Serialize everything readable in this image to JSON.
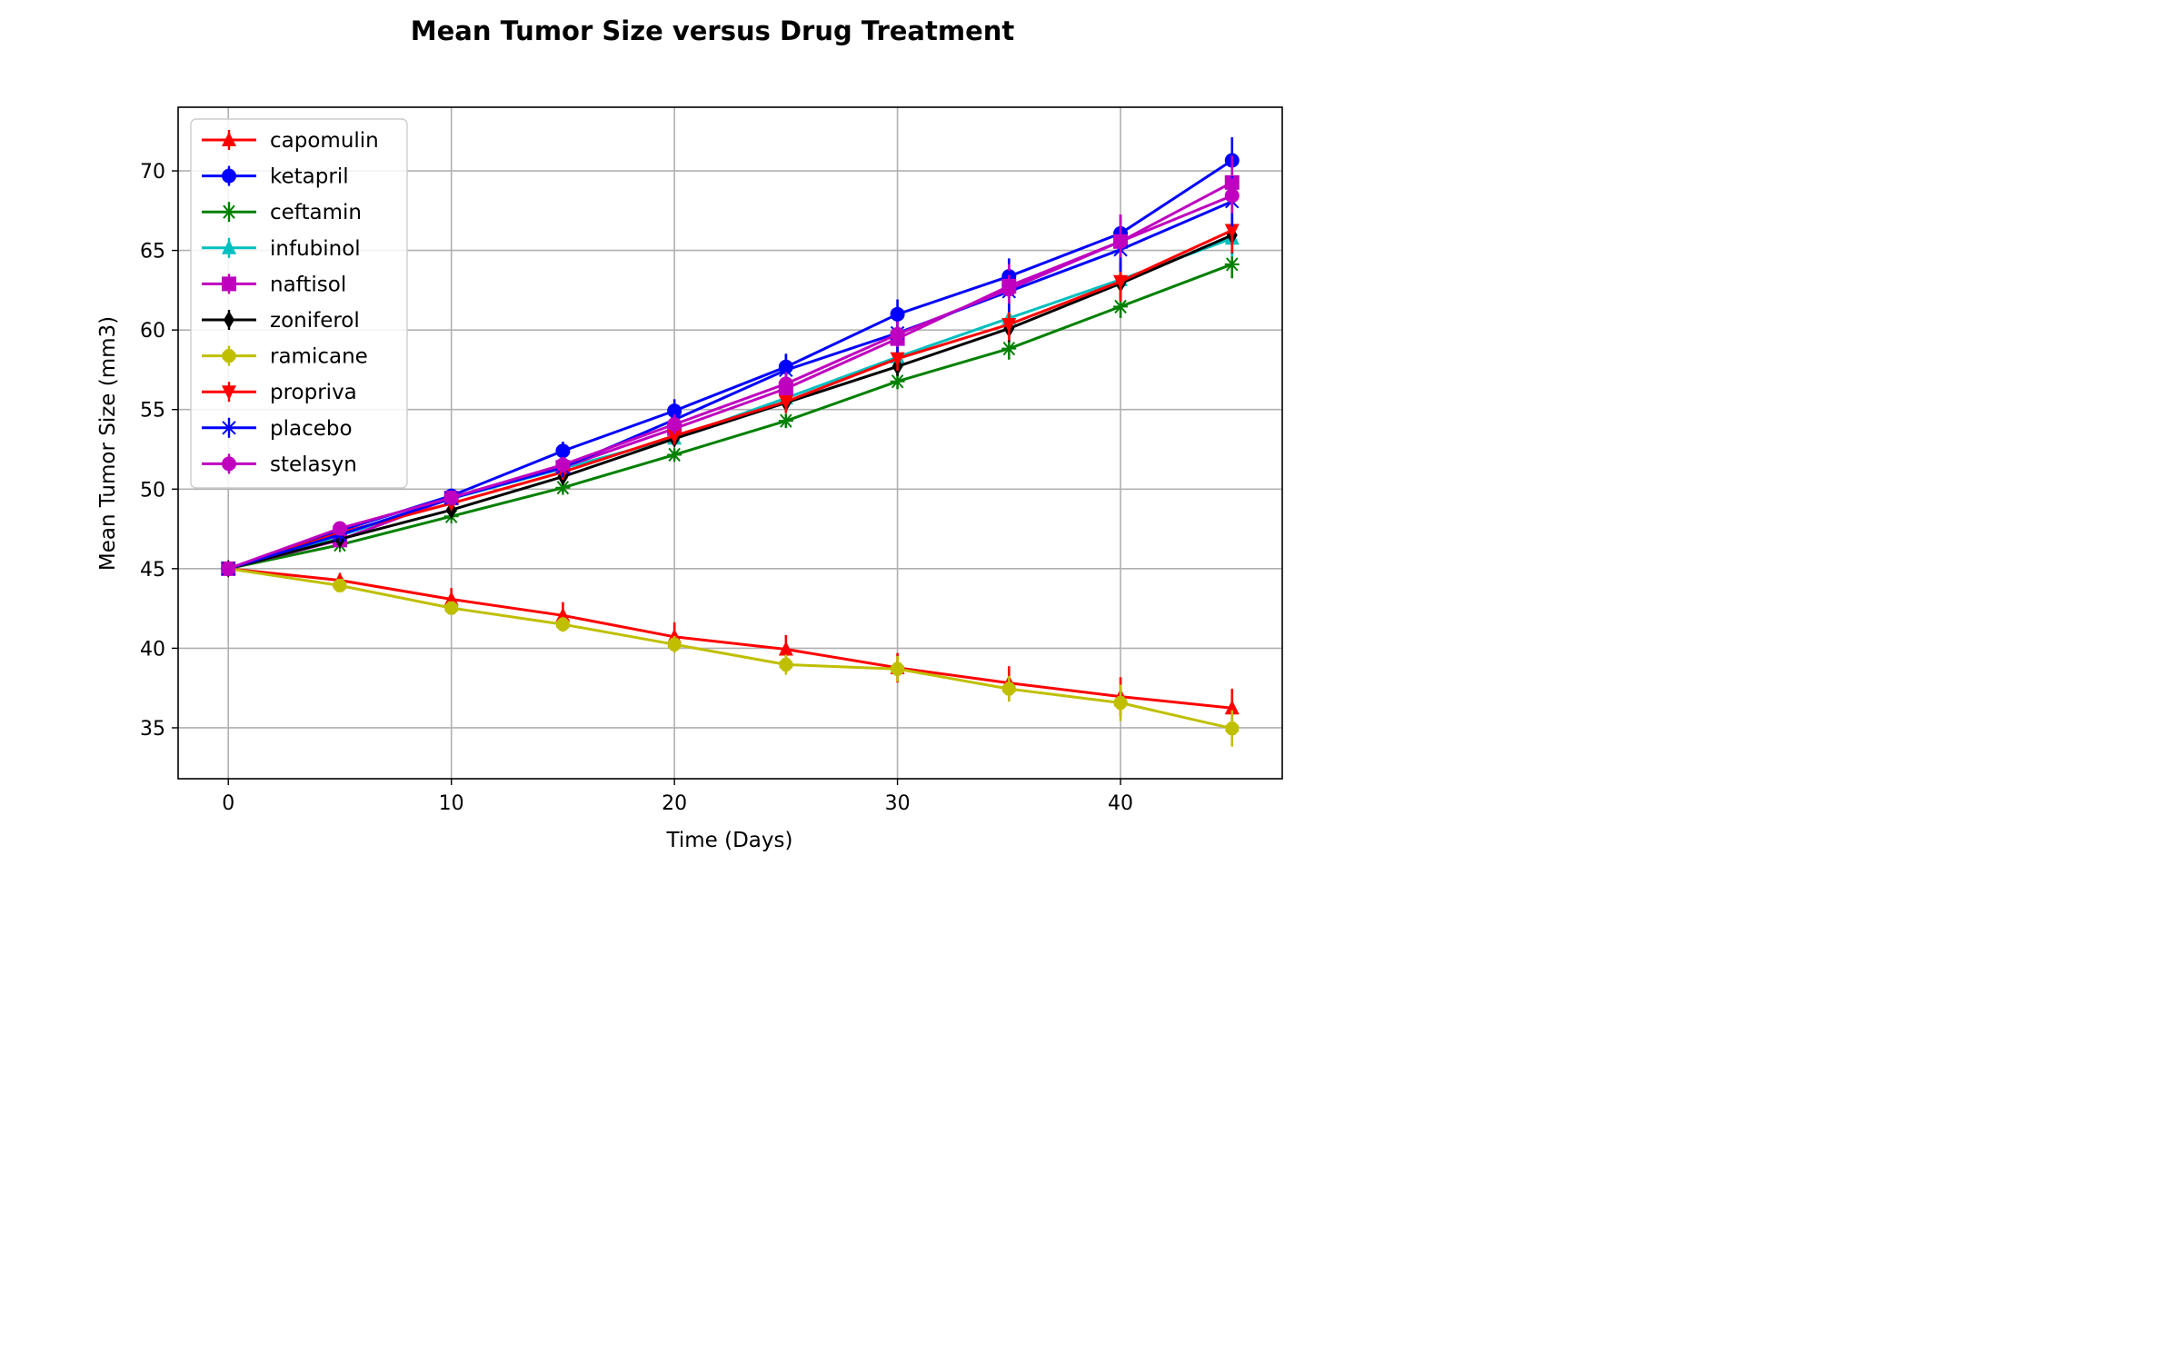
{
  "chart_data": {
    "type": "line",
    "title": "Mean Tumor Size versus Drug Treatment",
    "xlabel": "Time (Days)",
    "ylabel": "Mean Tumor Size (mm3)",
    "xlim": [
      -2.25,
      47.25
    ],
    "ylim": [
      31.8,
      74.0
    ],
    "xticks": [
      "0",
      "10",
      "20",
      "30",
      "40"
    ],
    "yticks": [
      "35",
      "40",
      "45",
      "50",
      "55",
      "60",
      "65",
      "70"
    ],
    "grid": true,
    "legend_position": "upper-left",
    "x": [
      0,
      5,
      10,
      15,
      20,
      25,
      30,
      35,
      40,
      45
    ],
    "series": [
      {
        "name": "capomulin",
        "color": "#ff0000",
        "marker": "triangle-up",
        "values": [
          45.0,
          44.27,
          43.08,
          42.06,
          40.72,
          39.94,
          38.77,
          37.82,
          36.96,
          36.24
        ],
        "errors": [
          0.0,
          0.45,
          0.7,
          0.84,
          0.91,
          0.89,
          0.93,
          1.05,
          1.22,
          1.22
        ]
      },
      {
        "name": "ketapril",
        "color": "#0000ff",
        "marker": "circle",
        "values": [
          45.0,
          47.39,
          49.58,
          52.4,
          54.92,
          57.68,
          60.99,
          63.37,
          66.07,
          70.66
        ],
        "errors": [
          0.0,
          0.26,
          0.36,
          0.58,
          0.73,
          0.76,
          0.93,
          1.13,
          1.16,
          1.45
        ]
      },
      {
        "name": "ceftamin",
        "color": "#008000",
        "marker": "star",
        "values": [
          45.0,
          46.5,
          48.29,
          50.09,
          52.16,
          54.29,
          56.77,
          58.83,
          61.47,
          64.13
        ],
        "errors": [
          0.0,
          0.16,
          0.24,
          0.33,
          0.36,
          0.44,
          0.49,
          0.69,
          0.71,
          0.88
        ]
      },
      {
        "name": "infubinol",
        "color": "#00bfbf",
        "marker": "triangle-up",
        "values": [
          45.0,
          47.06,
          49.4,
          51.3,
          53.2,
          55.72,
          58.3,
          60.74,
          63.16,
          65.76
        ],
        "errors": [
          0.0,
          0.24,
          0.28,
          0.36,
          0.48,
          0.55,
          0.63,
          0.98,
          1.06,
          1.14
        ]
      },
      {
        "name": "naftisol",
        "color": "#bf00bf",
        "marker": "square",
        "values": [
          45.0,
          46.8,
          49.44,
          51.37,
          53.8,
          56.32,
          59.46,
          62.76,
          65.56,
          69.27
        ],
        "errors": [
          0.0,
          0.2,
          0.42,
          0.58,
          0.79,
          0.99,
          1.23,
          1.4,
          1.7,
          1.7
        ]
      },
      {
        "name": "zoniferol",
        "color": "#000000",
        "marker": "thin-diamond",
        "values": [
          45.0,
          46.85,
          48.69,
          50.78,
          53.17,
          55.43,
          57.71,
          60.09,
          62.92,
          65.96
        ],
        "errors": [
          0.0,
          0.19,
          0.26,
          0.35,
          0.44,
          0.51,
          0.6,
          0.84,
          1.02,
          1.14
        ]
      },
      {
        "name": "ramicane",
        "color": "#bfbf00",
        "marker": "octagon",
        "values": [
          45.0,
          43.94,
          42.53,
          41.5,
          40.24,
          38.97,
          38.7,
          37.45,
          36.57,
          34.96
        ],
        "errors": [
          0.0,
          0.26,
          0.3,
          0.47,
          0.53,
          0.63,
          0.81,
          0.81,
          1.14,
          1.14
        ]
      },
      {
        "name": "propriva",
        "color": "#ff0000",
        "marker": "triangle-down",
        "values": [
          45.0,
          47.25,
          49.1,
          51.07,
          53.35,
          55.5,
          58.2,
          60.35,
          63.05,
          66.26
        ],
        "errors": [
          0.0,
          0.23,
          0.38,
          0.47,
          0.56,
          0.73,
          0.76,
          1.0,
          1.26,
          1.4
        ]
      },
      {
        "name": "placebo",
        "color": "#0000ff",
        "marker": "x-star",
        "values": [
          45.0,
          47.13,
          49.42,
          51.36,
          54.36,
          57.48,
          59.81,
          62.42,
          65.05,
          68.08
        ],
        "errors": [
          0.0,
          0.22,
          0.4,
          0.61,
          0.84,
          1.03,
          1.22,
          1.3,
          1.39,
          1.58
        ]
      },
      {
        "name": "stelasyn",
        "color": "#bf00bf",
        "marker": "circle",
        "values": [
          45.0,
          47.53,
          49.46,
          51.53,
          54.07,
          56.62,
          59.73,
          62.56,
          65.56,
          68.44
        ],
        "errors": [
          0.0,
          0.24,
          0.43,
          0.49,
          0.62,
          0.74,
          0.8,
          0.9,
          1.0,
          1.1
        ]
      }
    ]
  }
}
